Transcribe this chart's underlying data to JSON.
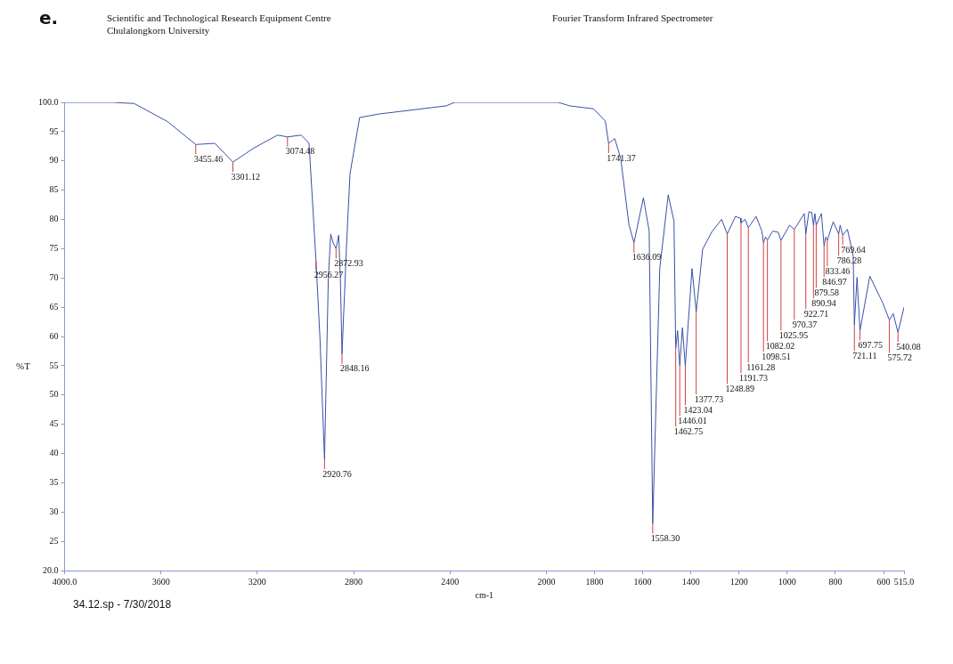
{
  "chart_data": {
    "type": "line",
    "title": "Scientific and Technological Research Equipment Centre",
    "subtitle": "Chulalongkorn University",
    "xlabel": "cm-1",
    "ylabel": "%T",
    "color": "#3b4fa8",
    "marker": "none",
    "xlim": [
      4000,
      515
    ],
    "xticks": [
      {
        "value": 4000,
        "label": "4000.0"
      },
      3600,
      3200,
      2800,
      2400,
      2000,
      1800,
      1600,
      1400,
      1200,
      1000,
      800,
      600,
      {
        "value": 515,
        "label": "515.0"
      }
    ],
    "ylim": [
      20,
      100
    ],
    "yticks": [
      {
        "value": 20,
        "label": "20.0"
      },
      25,
      30,
      35,
      40,
      45,
      50,
      55,
      60,
      65,
      70,
      75,
      80,
      85,
      90,
      95,
      {
        "value": 100,
        "label": "100.0"
      }
    ],
    "x": [
      4000,
      3800,
      3711,
      3572,
      3455.46,
      3376,
      3301.12,
      3214,
      3116,
      3074.48,
      3017,
      2985,
      2956.27,
      2940,
      2920.76,
      2905,
      2895,
      2885,
      2872.93,
      2862,
      2855,
      2848.16,
      2830,
      2815,
      2775,
      2697,
      2416,
      2380,
      1950,
      1903,
      1804,
      1755,
      1741.37,
      1716,
      1691,
      1657,
      1636.09,
      1597,
      1573,
      1558.3,
      1529,
      1494,
      1470,
      1462.75,
      1455,
      1446.01,
      1435,
      1423.04,
      1395,
      1377.73,
      1351,
      1311,
      1272,
      1248.89,
      1215,
      1194,
      1191.73,
      1175,
      1161.28,
      1129,
      1105,
      1098.51,
      1090,
      1082.02,
      1060,
      1037,
      1025.95,
      990,
      970.37,
      929,
      922.71,
      910,
      898,
      890.94,
      885,
      879.58,
      858,
      846.97,
      840,
      833.46,
      809,
      786.28,
      780,
      769.64,
      750,
      726,
      721.11,
      710,
      697.75,
      657,
      603,
      575.72,
      560,
      540.08,
      515
    ],
    "values": [
      100,
      100,
      99.8,
      96.7,
      92.8,
      93,
      89.8,
      92.2,
      94.4,
      94.1,
      94.4,
      93,
      73,
      60,
      39,
      70,
      77.5,
      76,
      75,
      77.3,
      70,
      57,
      75,
      87.8,
      97.4,
      98,
      99.4,
      100,
      100,
      99.4,
      98.9,
      96.8,
      93,
      93.8,
      90.4,
      79.1,
      76,
      83.7,
      78,
      28,
      71.6,
      84.2,
      79.7,
      58,
      61,
      55,
      61.5,
      55,
      71.6,
      64.2,
      74.9,
      78,
      80,
      77.5,
      80.5,
      80.2,
      79.4,
      80,
      78.6,
      80.5,
      78,
      76,
      77,
      76.5,
      78,
      77.8,
      76.4,
      79,
      78.3,
      81,
      77.5,
      81.3,
      81.2,
      79,
      81,
      79,
      81,
      75.5,
      77,
      76.4,
      79.6,
      77.5,
      79,
      77.3,
      78.3,
      73.8,
      62,
      70.1,
      61,
      70.3,
      65.7,
      62.8,
      63.9,
      60.7,
      65
    ],
    "annotations": [
      "e.",
      "Fourier Transform Infrared Spectrometer",
      "34.12.sp - 7/30/2018",
      {
        "text": "3455.46",
        "x": 3455.46,
        "y": 92.8
      },
      {
        "text": "3301.12",
        "x": 3301.12,
        "y": 89.8
      },
      {
        "text": "3074.48",
        "x": 3074.48,
        "y": 94.1
      },
      {
        "text": "2956.27",
        "x": 2956.27,
        "y": 73
      },
      {
        "text": "2920.76",
        "x": 2920.76,
        "y": 39
      },
      {
        "text": "2872.93",
        "x": 2872.93,
        "y": 75
      },
      {
        "text": "2848.16",
        "x": 2848.16,
        "y": 57
      },
      {
        "text": "1741.37",
        "x": 1741.37,
        "y": 93
      },
      {
        "text": "1636.09",
        "x": 1636.09,
        "y": 76
      },
      {
        "text": "1558.30",
        "x": 1558.3,
        "y": 28
      },
      {
        "text": "1462.75",
        "x": 1462.75,
        "y": 58
      },
      {
        "text": "1446.01",
        "x": 1446.01,
        "y": 55
      },
      {
        "text": "1423.04",
        "x": 1423.04,
        "y": 55
      },
      {
        "text": "1377.73",
        "x": 1377.73,
        "y": 64.2
      },
      {
        "text": "1248.89",
        "x": 1248.89,
        "y": 77.5
      },
      {
        "text": "1191.73",
        "x": 1191.73,
        "y": 79.4
      },
      {
        "text": "1161.28",
        "x": 1161.28,
        "y": 78.6
      },
      {
        "text": "1098.51",
        "x": 1098.51,
        "y": 76
      },
      {
        "text": "1082.02",
        "x": 1082.02,
        "y": 76.5
      },
      {
        "text": "1025.95",
        "x": 1025.95,
        "y": 76.4
      },
      {
        "text": "970.37",
        "x": 970.37,
        "y": 78.3
      },
      {
        "text": "922.71",
        "x": 922.71,
        "y": 77.5
      },
      {
        "text": "890.94",
        "x": 890.94,
        "y": 79
      },
      {
        "text": "879.58",
        "x": 879.58,
        "y": 79
      },
      {
        "text": "846.97",
        "x": 846.97,
        "y": 75.5
      },
      {
        "text": "833.46",
        "x": 833.46,
        "y": 76.4
      },
      {
        "text": "786.28",
        "x": 786.28,
        "y": 77.5
      },
      {
        "text": "769.64",
        "x": 769.64,
        "y": 77.3
      },
      {
        "text": "721.11",
        "x": 721.11,
        "y": 62
      },
      {
        "text": "697.75",
        "x": 697.75,
        "y": 61
      },
      {
        "text": "575.72",
        "x": 575.72,
        "y": 62.8
      },
      {
        "text": "540.08",
        "x": 540.08,
        "y": 60.7
      }
    ]
  }
}
